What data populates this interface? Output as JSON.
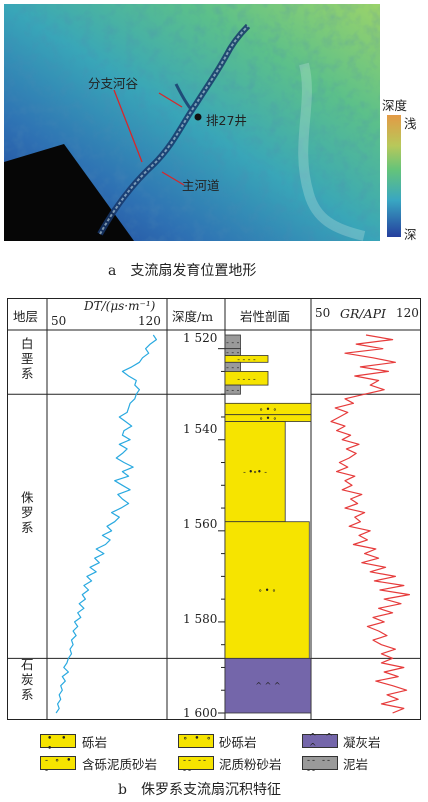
{
  "figure_a": {
    "caption": "a　支流扇发育位置地形",
    "labels": {
      "branch_valley": "分支河谷",
      "main_channel": "主河道",
      "well": "排27井"
    },
    "depth_legend": {
      "title": "深度",
      "top": "浅",
      "bottom": "深"
    }
  },
  "figure_b": {
    "caption": "b　侏罗系支流扇沉积特征",
    "headers": {
      "strata": "地层",
      "dt": "DT/(μs·m⁻¹)",
      "dt_min": "50",
      "dt_max": "120",
      "depth": "深度/m",
      "lith": "岩性剖面",
      "gr": "GR/API",
      "gr_min": "50",
      "gr_max": "120"
    },
    "strata": [
      {
        "name": "白垩系",
        "top": 1517,
        "bottom": 1530
      },
      {
        "name": "侏罗系",
        "top": 1530,
        "bottom": 1588
      },
      {
        "name": "石炭系",
        "top": 1588,
        "bottom": 1600
      }
    ],
    "depth_ticks": [
      "1 520",
      "1 540",
      "1 560",
      "1 580",
      "1 600"
    ],
    "depth_values": [
      1520,
      1540,
      1560,
      1580,
      1600
    ],
    "legend": [
      {
        "label": "砾岩",
        "color": "#f6e400"
      },
      {
        "label": "砂砾岩",
        "color": "#f6e400"
      },
      {
        "label": "凝灰岩",
        "color": "#7466aa"
      },
      {
        "label": "含砾泥质砂岩",
        "color": "#f6e400"
      },
      {
        "label": "泥质粉砂岩",
        "color": "#f6e400"
      },
      {
        "label": "泥岩",
        "color": "#9a9a9a"
      }
    ]
  },
  "chart_data": {
    "type": "line",
    "x_dt_range": [
      50,
      120
    ],
    "x_gr_range": [
      50,
      120
    ],
    "ylim": [
      1517,
      1600
    ],
    "y_reversed": true,
    "series": [
      {
        "name": "DT",
        "color": "#29a9e0",
        "points": [
          [
            1517,
            115
          ],
          [
            1518,
            117
          ],
          [
            1519,
            113
          ],
          [
            1520,
            110
          ],
          [
            1521,
            112
          ],
          [
            1522,
            108
          ],
          [
            1523,
            106
          ],
          [
            1524,
            101
          ],
          [
            1525,
            95
          ],
          [
            1526,
            99
          ],
          [
            1527,
            104
          ],
          [
            1528,
            103
          ],
          [
            1529,
            106
          ],
          [
            1530,
            104
          ],
          [
            1531,
            103
          ],
          [
            1532,
            100
          ],
          [
            1533,
            99
          ],
          [
            1534,
            98
          ],
          [
            1535,
            93
          ],
          [
            1536,
            97
          ],
          [
            1537,
            101
          ],
          [
            1538,
            96
          ],
          [
            1539,
            95
          ],
          [
            1540,
            100
          ],
          [
            1541,
            93
          ],
          [
            1542,
            98
          ],
          [
            1543,
            95
          ],
          [
            1544,
            91
          ],
          [
            1545,
            96
          ],
          [
            1546,
            102
          ],
          [
            1547,
            95
          ],
          [
            1548,
            99
          ],
          [
            1549,
            90
          ],
          [
            1550,
            95
          ],
          [
            1551,
            100
          ],
          [
            1552,
            92
          ],
          [
            1553,
            95
          ],
          [
            1554,
            99
          ],
          [
            1555,
            94
          ],
          [
            1556,
            88
          ],
          [
            1557,
            93
          ],
          [
            1558,
            90
          ],
          [
            1559,
            85
          ],
          [
            1560,
            88
          ],
          [
            1561,
            82
          ],
          [
            1562,
            87
          ],
          [
            1563,
            84
          ],
          [
            1564,
            78
          ],
          [
            1565,
            83
          ],
          [
            1566,
            77
          ],
          [
            1567,
            80
          ],
          [
            1568,
            74
          ],
          [
            1569,
            78
          ],
          [
            1570,
            72
          ],
          [
            1571,
            75
          ],
          [
            1572,
            70
          ],
          [
            1573,
            73
          ],
          [
            1574,
            69
          ],
          [
            1575,
            71
          ],
          [
            1576,
            67
          ],
          [
            1577,
            70
          ],
          [
            1578,
            66
          ],
          [
            1579,
            68
          ],
          [
            1580,
            64
          ],
          [
            1581,
            66
          ],
          [
            1582,
            63
          ],
          [
            1583,
            65
          ],
          [
            1584,
            62
          ],
          [
            1585,
            63
          ],
          [
            1586,
            61
          ],
          [
            1587,
            62
          ],
          [
            1588,
            60
          ],
          [
            1589,
            59
          ],
          [
            1590,
            57
          ],
          [
            1591,
            60
          ],
          [
            1592,
            56
          ],
          [
            1593,
            58
          ],
          [
            1594,
            55
          ],
          [
            1595,
            56
          ],
          [
            1596,
            54
          ],
          [
            1597,
            55
          ],
          [
            1598,
            53
          ],
          [
            1599,
            54
          ],
          [
            1600,
            52
          ]
        ]
      },
      {
        "name": "GR",
        "color": "#e63b3b",
        "points": [
          [
            1517,
            85
          ],
          [
            1518,
            104
          ],
          [
            1519,
            78
          ],
          [
            1520,
            97
          ],
          [
            1521,
            70
          ],
          [
            1522,
            90
          ],
          [
            1523,
            106
          ],
          [
            1524,
            81
          ],
          [
            1525,
            101
          ],
          [
            1526,
            77
          ],
          [
            1527,
            94
          ],
          [
            1528,
            88
          ],
          [
            1529,
            98
          ],
          [
            1530,
            84
          ],
          [
            1531,
            70
          ],
          [
            1532,
            76
          ],
          [
            1533,
            63
          ],
          [
            1534,
            72
          ],
          [
            1535,
            66
          ],
          [
            1536,
            60
          ],
          [
            1537,
            70
          ],
          [
            1538,
            64
          ],
          [
            1539,
            74
          ],
          [
            1540,
            68
          ],
          [
            1541,
            80
          ],
          [
            1542,
            71
          ],
          [
            1543,
            78
          ],
          [
            1544,
            73
          ],
          [
            1545,
            66
          ],
          [
            1546,
            72
          ],
          [
            1547,
            64
          ],
          [
            1548,
            77
          ],
          [
            1549,
            70
          ],
          [
            1550,
            75
          ],
          [
            1551,
            68
          ],
          [
            1552,
            82
          ],
          [
            1553,
            74
          ],
          [
            1554,
            79
          ],
          [
            1555,
            70
          ],
          [
            1556,
            84
          ],
          [
            1557,
            77
          ],
          [
            1558,
            81
          ],
          [
            1559,
            73
          ],
          [
            1560,
            88
          ],
          [
            1561,
            80
          ],
          [
            1562,
            86
          ],
          [
            1563,
            76
          ],
          [
            1564,
            92
          ],
          [
            1565,
            84
          ],
          [
            1566,
            94
          ],
          [
            1567,
            82
          ],
          [
            1568,
            99
          ],
          [
            1569,
            88
          ],
          [
            1570,
            106
          ],
          [
            1571,
            91
          ],
          [
            1572,
            112
          ],
          [
            1573,
            95
          ],
          [
            1574,
            116
          ],
          [
            1575,
            98
          ],
          [
            1576,
            110
          ],
          [
            1577,
            94
          ],
          [
            1578,
            104
          ],
          [
            1579,
            90
          ],
          [
            1580,
            98
          ],
          [
            1581,
            86
          ],
          [
            1582,
            94
          ],
          [
            1583,
            100
          ],
          [
            1584,
            90
          ],
          [
            1585,
            96
          ],
          [
            1586,
            106
          ],
          [
            1587,
            96
          ],
          [
            1588,
            104
          ],
          [
            1589,
            96
          ],
          [
            1590,
            112
          ],
          [
            1591,
            98
          ],
          [
            1592,
            108
          ],
          [
            1593,
            92
          ],
          [
            1594,
            104
          ],
          [
            1595,
            114
          ],
          [
            1596,
            100
          ],
          [
            1597,
            108
          ],
          [
            1598,
            96
          ],
          [
            1599,
            112
          ],
          [
            1600,
            104
          ]
        ]
      }
    ]
  }
}
